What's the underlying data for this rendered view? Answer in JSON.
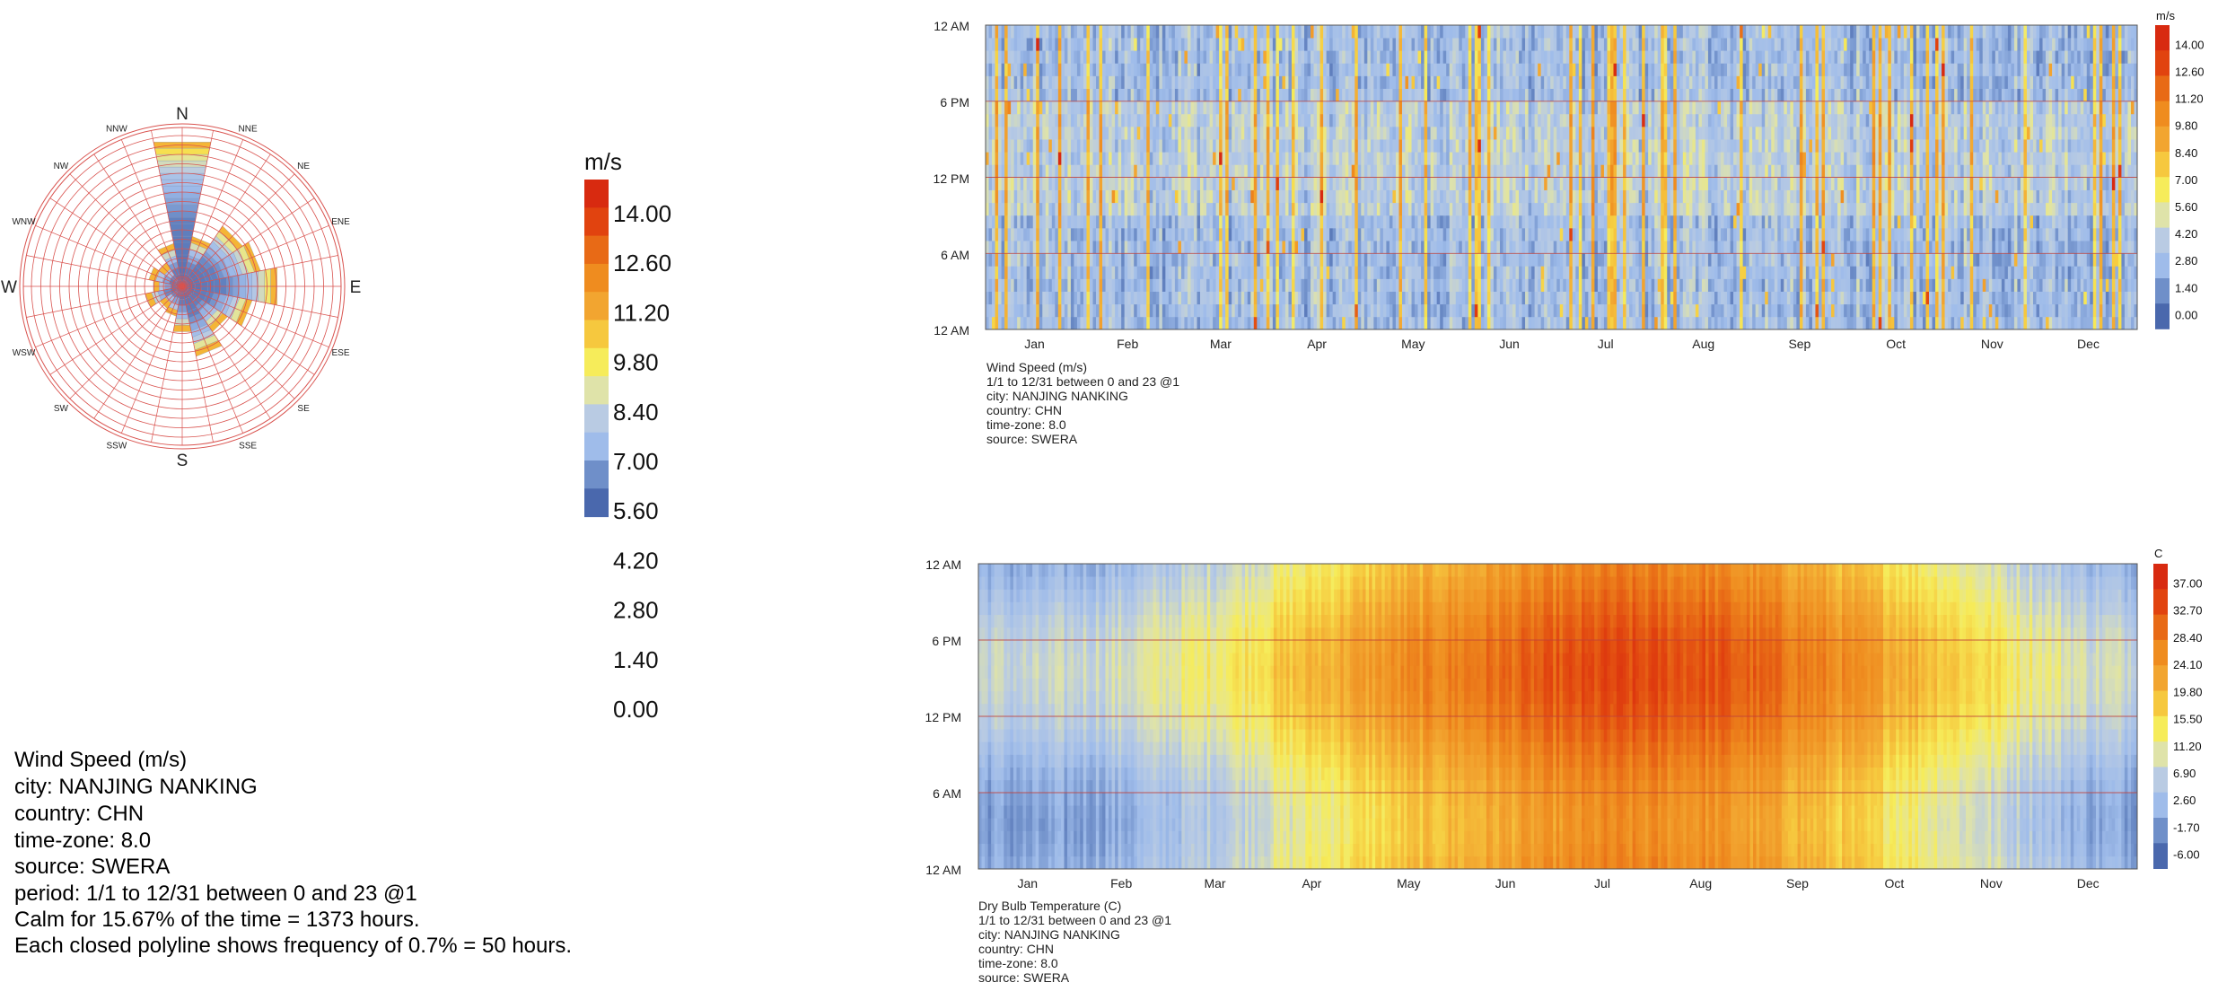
{
  "colors": {
    "wind_scale": [
      "#4a68ad",
      "#6f8fc9",
      "#9fbcea",
      "#b9cbe3",
      "#dfe3a9",
      "#f6ec5a",
      "#f6c83e",
      "#f2a530",
      "#ef8c1f",
      "#e86a16",
      "#e1430f",
      "#d82a10"
    ],
    "temp_scale": [
      "#4a68ad",
      "#6f8fc9",
      "#9fbcea",
      "#b9cbe3",
      "#dfe3a9",
      "#f6ec5a",
      "#f6c83e",
      "#f2a530",
      "#ef8c1f",
      "#e86a16",
      "#e1430f",
      "#d82a10"
    ],
    "grid_red": "#d9534f"
  },
  "rose": {
    "directions": [
      "N",
      "NNE",
      "NE",
      "ENE",
      "E",
      "ESE",
      "SE",
      "SSE",
      "S",
      "SSW",
      "SW",
      "WSW",
      "W",
      "WNW",
      "NW",
      "NNW"
    ],
    "legend_unit": "m/s",
    "legend_labels": [
      "14.00",
      "12.60",
      "11.20",
      "9.80",
      "8.40",
      "7.00",
      "5.60",
      "4.20",
      "2.80",
      "1.40",
      "0.00"
    ],
    "description": [
      "Wind Speed (m/s)",
      "city: NANJING NANKING",
      "country: CHN",
      "time-zone: 8.0",
      "source: SWERA",
      "period: 1/1 to 12/31 between 0 and 23 @1",
      "Calm for 15.67% of the time = 1373 hours.",
      "Each closed polyline shows frequency of 0.7% = 50 hours."
    ]
  },
  "heatmap_wind": {
    "y_labels": [
      "12 AM",
      "6 PM",
      "12 PM",
      "6 AM",
      "12 AM"
    ],
    "months": [
      "Jan",
      "Feb",
      "Mar",
      "Apr",
      "May",
      "Jun",
      "Jul",
      "Aug",
      "Sep",
      "Oct",
      "Nov",
      "Dec"
    ],
    "legend_unit": "m/s",
    "legend_labels": [
      "14.00",
      "12.60",
      "11.20",
      "9.80",
      "8.40",
      "7.00",
      "5.60",
      "4.20",
      "2.80",
      "1.40",
      "0.00"
    ],
    "description": [
      "Wind Speed (m/s)",
      "1/1 to 12/31 between 0 and 23 @1",
      "city: NANJING NANKING",
      "country: CHN",
      "time-zone: 8.0",
      "source: SWERA"
    ]
  },
  "heatmap_temp": {
    "y_labels": [
      "12 AM",
      "6 PM",
      "12 PM",
      "6 AM",
      "12 AM"
    ],
    "months": [
      "Jan",
      "Feb",
      "Mar",
      "Apr",
      "May",
      "Jun",
      "Jul",
      "Aug",
      "Sep",
      "Oct",
      "Nov",
      "Dec"
    ],
    "legend_unit": "C",
    "legend_labels": [
      "37.00",
      "32.70",
      "28.40",
      "24.10",
      "19.80",
      "15.50",
      "11.20",
      "6.90",
      "2.60",
      "-1.70",
      "-6.00"
    ],
    "description": [
      "Dry Bulb Temperature (C)",
      "1/1 to 12/31 between 0 and 23 @1",
      "city: NANJING NANKING",
      "country: CHN",
      "time-zone: 8.0",
      "source: SWERA"
    ]
  },
  "chart_data": [
    {
      "type": "wind-rose",
      "title": "Wind Speed (m/s)",
      "directions": [
        "N",
        "NNE",
        "NE",
        "ENE",
        "E",
        "ESE",
        "SE",
        "SSE",
        "S",
        "SSW",
        "SW",
        "WSW",
        "W",
        "WNW",
        "NW",
        "NNW"
      ],
      "frequency_pct": [
        11.2,
        3.2,
        5.0,
        5.6,
        7.0,
        4.9,
        3.5,
        4.9,
        2.8,
        1.5,
        1.2,
        2.1,
        1.4,
        1.8,
        1.3,
        2.6
      ],
      "ring_step_pct": 0.7,
      "calm_pct": 15.67,
      "calm_hours": 1373,
      "speed_range": [
        0,
        14
      ]
    },
    {
      "type": "heatmap",
      "title": "Wind Speed (m/s)",
      "x": "day of year 1-365",
      "y": "hour 0-23",
      "range": [
        0.0,
        14.0
      ],
      "months": [
        "Jan",
        "Feb",
        "Mar",
        "Apr",
        "May",
        "Jun",
        "Jul",
        "Aug",
        "Sep",
        "Oct",
        "Nov",
        "Dec"
      ],
      "typical_range_m_s": [
        0.5,
        9.0
      ]
    },
    {
      "type": "heatmap",
      "title": "Dry Bulb Temperature (C)",
      "x": "day of year 1-365",
      "y": "hour 0-23",
      "range": [
        -6.0,
        37.0
      ],
      "months": [
        "Jan",
        "Feb",
        "Mar",
        "Apr",
        "May",
        "Jun",
        "Jul",
        "Aug",
        "Sep",
        "Oct",
        "Nov",
        "Dec"
      ],
      "monthly_mean_c": [
        2.5,
        4.5,
        9.0,
        15.5,
        21.0,
        25.0,
        28.5,
        28.0,
        23.5,
        17.5,
        11.0,
        4.5
      ],
      "diurnal_amplitude_c": 8
    }
  ]
}
